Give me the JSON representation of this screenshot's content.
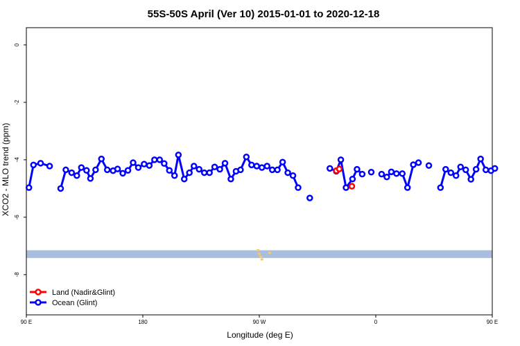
{
  "chart_data": {
    "type": "line",
    "title": "55S-50S April (Ver 10)   2015-01-01 to 2020-12-18",
    "xlabel": "Longitude (deg E)",
    "ylabel": "XCO2 - MLO trend (ppm)",
    "xlim": [
      90,
      450
    ],
    "ylim": [
      -9.4,
      0.6
    ],
    "x_ticks": [
      {
        "value": 90,
        "label": "90 E"
      },
      {
        "value": 180,
        "label": "180"
      },
      {
        "value": 270,
        "label": "90 W"
      },
      {
        "value": 360,
        "label": "0"
      },
      {
        "value": 450,
        "label": "90 E"
      },
      {
        "value": 540,
        "label": "180"
      }
    ],
    "y_ticks": [
      {
        "value": 0,
        "label": "0"
      },
      {
        "value": -2,
        "label": "-2"
      },
      {
        "value": -4,
        "label": "-4"
      },
      {
        "value": -6,
        "label": "-6"
      },
      {
        "value": -8,
        "label": "-8"
      }
    ],
    "grid": false,
    "legend_position": "bottom-left",
    "series": [
      {
        "name": "Land (Nadir&Glint)",
        "color": "#ff0000",
        "segments": [
          [
            [
              329.5,
              -4.38
            ],
            [
              331.8,
              -4.32
            ]
          ],
          [
            [
              341.5,
              -4.92
            ]
          ]
        ]
      },
      {
        "name": "Ocean (Glint)",
        "color": "#0000ff",
        "segments": [
          [
            [
              92,
              -4.97
            ],
            [
              95.5,
              -4.18
            ],
            [
              101,
              -4.12
            ],
            [
              108,
              -4.22
            ]
          ],
          [
            [
              116.5,
              -5.0
            ],
            [
              120.5,
              -4.35
            ],
            [
              125,
              -4.45
            ],
            [
              129,
              -4.55
            ],
            [
              132.5,
              -4.27
            ],
            [
              136.5,
              -4.37
            ],
            [
              139.5,
              -4.65
            ],
            [
              143.5,
              -4.35
            ],
            [
              148,
              -3.97
            ],
            [
              152.5,
              -4.35
            ],
            [
              157,
              -4.38
            ],
            [
              160.5,
              -4.32
            ],
            [
              164.5,
              -4.47
            ],
            [
              168.5,
              -4.37
            ],
            [
              172.5,
              -4.1
            ],
            [
              176.5,
              -4.27
            ],
            [
              181,
              -4.15
            ],
            [
              185,
              -4.2
            ],
            [
              189,
              -4.0
            ],
            [
              193,
              -4.0
            ],
            [
              196.5,
              -4.13
            ],
            [
              200.5,
              -4.37
            ],
            [
              204.5,
              -4.55
            ],
            [
              207.5,
              -3.83
            ],
            [
              212,
              -4.67
            ],
            [
              216,
              -4.45
            ],
            [
              219.5,
              -4.22
            ],
            [
              223.5,
              -4.33
            ],
            [
              227.5,
              -4.45
            ],
            [
              231.5,
              -4.45
            ],
            [
              235.5,
              -4.25
            ],
            [
              239.5,
              -4.33
            ],
            [
              243.5,
              -4.12
            ],
            [
              248,
              -4.67
            ],
            [
              252,
              -4.4
            ],
            [
              255.5,
              -4.35
            ],
            [
              260,
              -3.9
            ],
            [
              264,
              -4.18
            ],
            [
              268,
              -4.22
            ],
            [
              272,
              -4.27
            ],
            [
              276,
              -4.22
            ],
            [
              280,
              -4.35
            ],
            [
              284,
              -4.35
            ],
            [
              288,
              -4.08
            ],
            [
              292,
              -4.45
            ],
            [
              296,
              -4.55
            ],
            [
              300,
              -4.97
            ]
          ],
          [
            [
              309,
              -5.33
            ]
          ],
          [
            [
              324.5,
              -4.3
            ],
            [
              329.5,
              -4.4
            ],
            [
              333,
              -4.0
            ],
            [
              337,
              -4.97
            ],
            [
              342,
              -4.67
            ],
            [
              345.5,
              -4.33
            ],
            [
              349.5,
              -4.5
            ]
          ],
          [
            [
              356.5,
              -4.43
            ]
          ],
          [
            [
              364.5,
              -4.5
            ],
            [
              368.5,
              -4.6
            ],
            [
              372,
              -4.42
            ],
            [
              376,
              -4.48
            ],
            [
              380.5,
              -4.48
            ],
            [
              384.5,
              -4.97
            ],
            [
              389,
              -4.17
            ],
            [
              393,
              -4.1
            ]
          ],
          [
            [
              401,
              -4.2
            ]
          ],
          [
            [
              410,
              -4.97
            ],
            [
              414,
              -4.33
            ],
            [
              418,
              -4.45
            ],
            [
              422,
              -4.55
            ],
            [
              425.5,
              -4.25
            ],
            [
              429.5,
              -4.35
            ],
            [
              433.5,
              -4.68
            ],
            [
              437.5,
              -4.33
            ],
            [
              441,
              -3.97
            ],
            [
              445,
              -4.35
            ],
            [
              449,
              -4.38
            ],
            [
              452,
              -4.3
            ]
          ]
        ]
      }
    ],
    "glint_band": {
      "y_top": -7.15,
      "y_bottom": -7.42,
      "color": "#a8bedc"
    },
    "land_marks": [
      {
        "x": 269,
        "y": -7.15
      },
      {
        "x": 270,
        "y": -7.28
      },
      {
        "x": 271,
        "y": -7.38
      },
      {
        "x": 272,
        "y": -7.47
      },
      {
        "x": 278,
        "y": -7.24
      }
    ]
  }
}
